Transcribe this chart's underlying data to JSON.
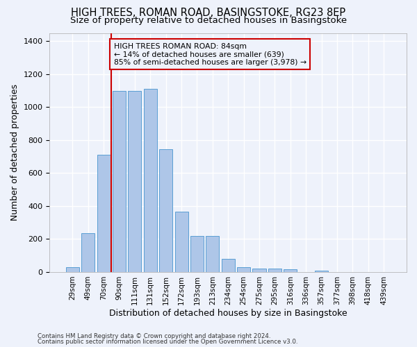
{
  "title": "HIGH TREES, ROMAN ROAD, BASINGSTOKE, RG23 8EP",
  "subtitle": "Size of property relative to detached houses in Basingstoke",
  "xlabel": "Distribution of detached houses by size in Basingstoke",
  "ylabel": "Number of detached properties",
  "categories": [
    "29sqm",
    "49sqm",
    "70sqm",
    "90sqm",
    "111sqm",
    "131sqm",
    "152sqm",
    "172sqm",
    "193sqm",
    "213sqm",
    "234sqm",
    "254sqm",
    "275sqm",
    "295sqm",
    "316sqm",
    "336sqm",
    "357sqm",
    "377sqm",
    "398sqm",
    "418sqm",
    "439sqm"
  ],
  "values": [
    30,
    235,
    710,
    1100,
    1100,
    1110,
    745,
    365,
    220,
    220,
    80,
    30,
    20,
    20,
    15,
    0,
    10,
    0,
    0,
    0,
    0
  ],
  "bar_color": "#aec6e8",
  "bar_edge_color": "#5a9fd4",
  "vline_color": "#cc0000",
  "vline_pos": 2.5,
  "ylim": [
    0,
    1450
  ],
  "yticks": [
    0,
    200,
    400,
    600,
    800,
    1000,
    1200,
    1400
  ],
  "annotation_text": "HIGH TREES ROMAN ROAD: 84sqm\n← 14% of detached houses are smaller (639)\n85% of semi-detached houses are larger (3,978) →",
  "annotation_box_color": "#cc0000",
  "footer_line1": "Contains HM Land Registry data © Crown copyright and database right 2024.",
  "footer_line2": "Contains public sector information licensed under the Open Government Licence v3.0.",
  "bg_color": "#eef2fb",
  "grid_color": "#ffffff",
  "title_fontsize": 10.5,
  "subtitle_fontsize": 9.5,
  "xlabel_fontsize": 9,
  "ylabel_fontsize": 9,
  "tick_fontsize": 8,
  "ann_fontsize": 7.8,
  "footer_fontsize": 6.2
}
